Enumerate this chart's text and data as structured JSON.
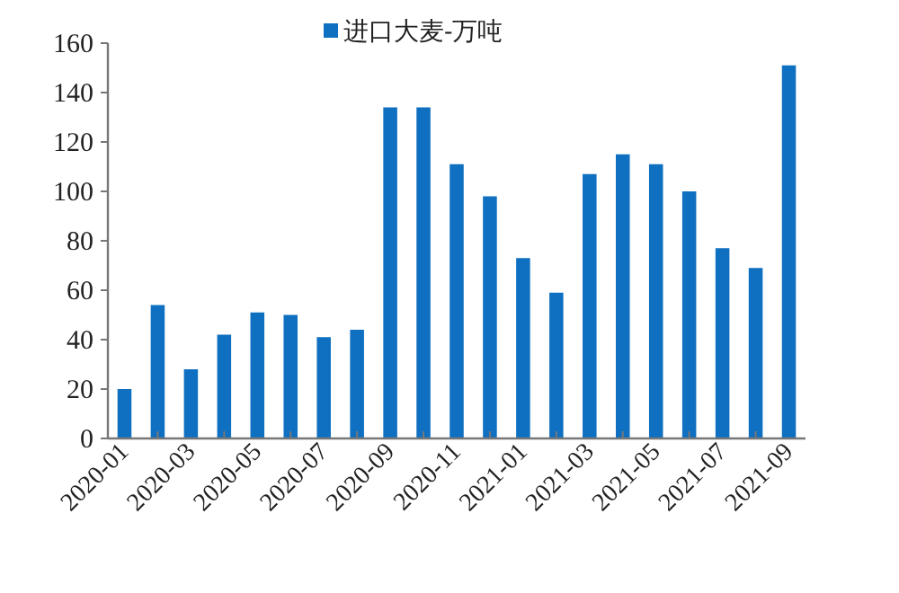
{
  "chart_data": {
    "type": "bar",
    "legend": "top",
    "grid": false,
    "series": [
      {
        "name": "进口大麦-万吨",
        "color": "#0f6fc0",
        "values": [
          20,
          54,
          28,
          42,
          51,
          50,
          41,
          44,
          134,
          134,
          111,
          98,
          73,
          59,
          107,
          115,
          111,
          100,
          77,
          69,
          151
        ]
      }
    ],
    "categories": [
      "2020-01",
      null,
      "2020-03",
      null,
      "2020-05",
      null,
      "2020-07",
      null,
      "2020-09",
      null,
      "2020-11",
      null,
      "2021-01",
      null,
      "2021-03",
      null,
      "2021-05",
      null,
      "2021-07",
      null,
      "2021-09"
    ],
    "ylim": [
      0,
      160
    ],
    "yticks": [
      0,
      20,
      40,
      60,
      80,
      100,
      120,
      140,
      160
    ]
  }
}
